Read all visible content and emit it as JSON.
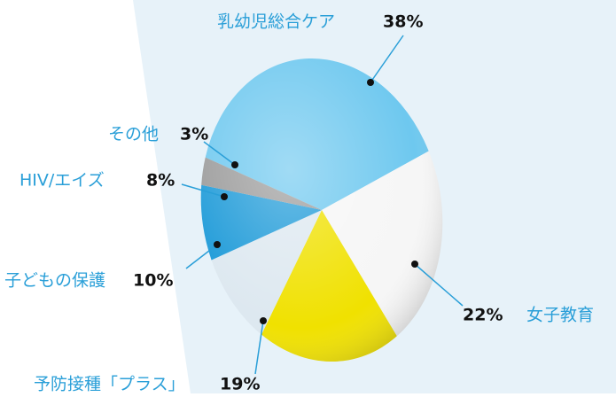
{
  "chart_data": {
    "type": "pie",
    "categories": [
      "乳幼児総合ケア",
      "女子教育",
      "予防接種「プラス」",
      "子どもの保護",
      "HIV/エイズ",
      "その他"
    ],
    "values": [
      38,
      22,
      19,
      10,
      8,
      3
    ],
    "value_labels": [
      "38%",
      "22%",
      "19%",
      "10%",
      "8%",
      "3%"
    ],
    "colors": [
      "#6ec8ef",
      "#f6f6f6",
      "#f0e100",
      "#dde8f0",
      "#1d9ad8",
      "#9a9a9a"
    ]
  }
}
